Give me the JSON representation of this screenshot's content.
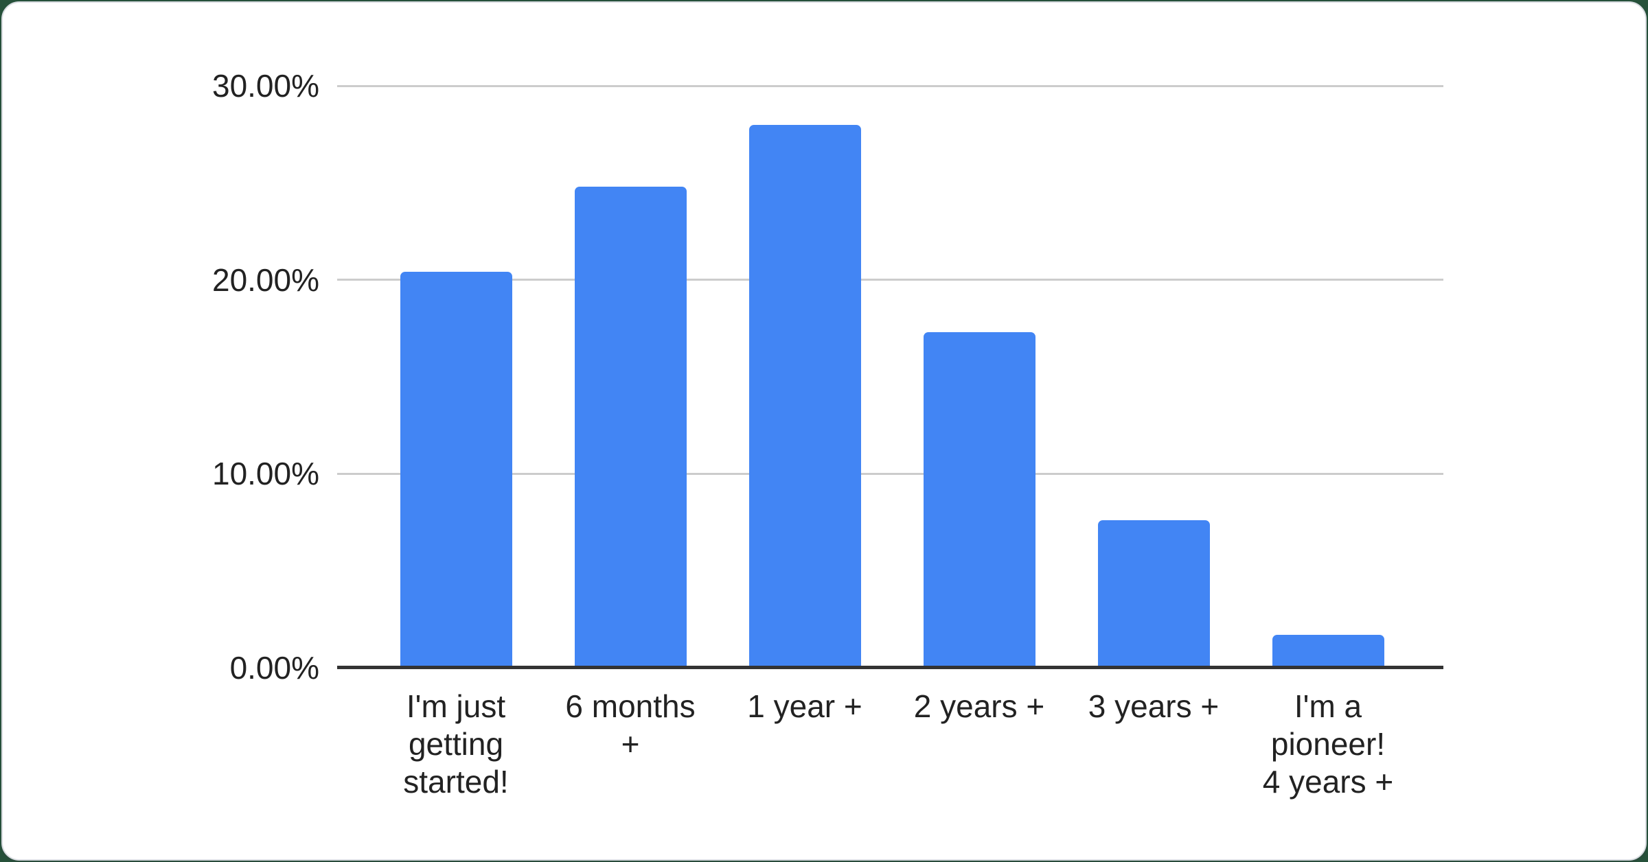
{
  "page": {
    "background_color": "#26513a"
  },
  "card": {
    "background_color": "#ffffff",
    "border_color": "#d9dce1"
  },
  "chart_data": {
    "type": "bar",
    "categories": [
      "I'm just getting started!",
      "6 months +",
      "1 year +",
      "2 years +",
      "3 years +",
      "I'm a pioneer! 4 years +"
    ],
    "category_lines": [
      [
        "I'm just",
        "getting",
        "started!"
      ],
      [
        "6 months",
        "+"
      ],
      [
        "1 year +"
      ],
      [
        "2 years +"
      ],
      [
        "3 years +"
      ],
      [
        "I'm a",
        "pioneer!",
        "4 years +"
      ]
    ],
    "values": [
      20.4,
      24.8,
      28.0,
      17.3,
      7.6,
      1.7
    ],
    "value_unit": "%",
    "ylim": [
      0,
      30
    ],
    "y_ticks": [
      {
        "label": "30.00%",
        "value": 30
      },
      {
        "label": "20.00%",
        "value": 20
      },
      {
        "label": "10.00%",
        "value": 10
      },
      {
        "label": "0.00%",
        "value": 0
      }
    ],
    "grid": true,
    "legend_position": "none",
    "bar_color": "#4285f4",
    "gridline_color": "#cccccc",
    "axis_line_color": "#333333",
    "label_color": "#222222"
  }
}
